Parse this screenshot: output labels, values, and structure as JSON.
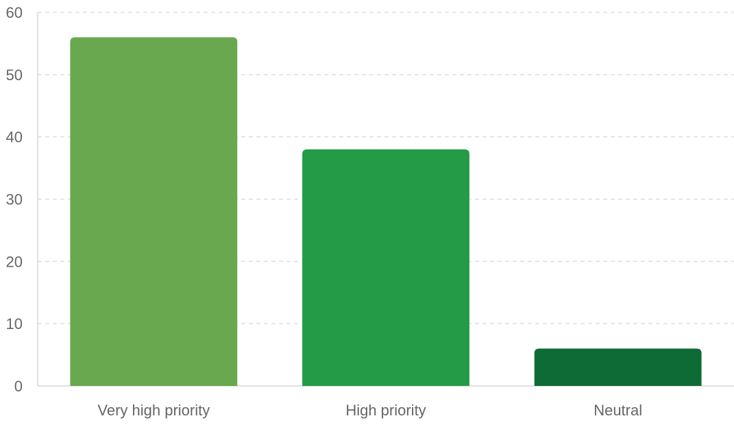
{
  "chart_data": {
    "type": "bar",
    "categories": [
      "Very high priority",
      "High priority",
      "Neutral"
    ],
    "values": [
      56,
      38,
      6
    ],
    "colors": [
      "#6aa84f",
      "#239b47",
      "#0e6b35"
    ],
    "title": "",
    "xlabel": "",
    "ylabel": "",
    "ylim": [
      0,
      60
    ],
    "yticks": [
      0,
      10,
      20,
      30,
      40,
      50,
      60
    ],
    "ytick_labels": [
      "0",
      "10",
      "20",
      "30",
      "40",
      "50",
      "60"
    ],
    "grid": true,
    "grid_style": "dashed",
    "legend": "none"
  }
}
